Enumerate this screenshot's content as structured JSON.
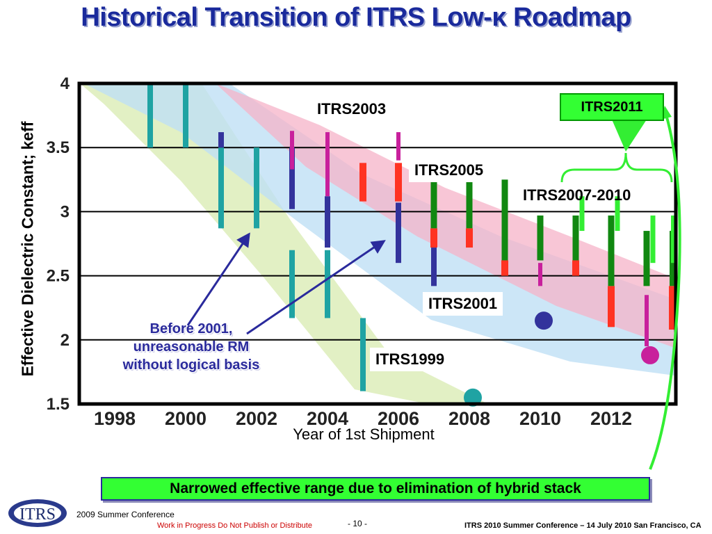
{
  "slide": {
    "title": "Historical Transition of ITRS Low-κ Roadmap",
    "footer_note": "Narrowed effective range due to elimination of hybrid stack",
    "annotation": [
      "Before 2001,",
      "unreasonable RM",
      "without logical basis"
    ],
    "logo_text": "ITRS",
    "conference": "2009 Summer Conference",
    "work_in_progress": "Work in Progress   Do Not Publish or Distribute",
    "page_number": "- 10 -",
    "conference_info": "ITRS 2010 Summer Conference – 14 July 2010 San Francisco, CA"
  },
  "chart_data": {
    "type": "bar",
    "xlabel": "Year of 1st Shipment",
    "ylabel": "Effective Dielectric Constant; keff",
    "xlim": [
      1997,
      2014
    ],
    "ylim": [
      1.5,
      4
    ],
    "x_ticks": [
      "1998",
      "2000",
      "2002",
      "2004",
      "2006",
      "2008",
      "2010",
      "2012"
    ],
    "y_ticks": [
      "1.5",
      "2",
      "2.5",
      "3",
      "3.5",
      "4"
    ],
    "grid": "horizontal",
    "series": [
      {
        "name": "ITRS1999",
        "color": "#1fa3a3",
        "label_color": "#1fbfe8",
        "ranges": [
          {
            "x": 1999,
            "low": 3.5,
            "high": 4.0
          },
          {
            "x": 2000,
            "low": 3.5,
            "high": 4.0
          },
          {
            "x": 2001,
            "low": 2.87,
            "high": 3.5
          },
          {
            "x": 2002,
            "low": 2.87,
            "high": 3.5
          },
          {
            "x": 2003,
            "low": 2.17,
            "high": 2.7
          },
          {
            "x": 2004,
            "low": 2.17,
            "high": 2.7
          },
          {
            "x": 2005,
            "low": 1.6,
            "high": 2.17
          }
        ],
        "target_point": {
          "x": 2008,
          "y": 1.55
        }
      },
      {
        "name": "ITRS2001",
        "color": "#33339c",
        "label_color": "#1a2a9c",
        "ranges": [
          {
            "x": 2001,
            "low": 3.5,
            "high": 3.62
          },
          {
            "x": 2003,
            "low": 3.02,
            "high": 3.5
          },
          {
            "x": 2004,
            "low": 2.72,
            "high": 3.12
          },
          {
            "x": 2006,
            "low": 2.6,
            "high": 3.07
          },
          {
            "x": 2007,
            "low": 2.42,
            "high": 2.72
          }
        ],
        "target_point": {
          "x": 2010,
          "y": 2.15
        }
      },
      {
        "name": "ITRS2003",
        "color": "#c8209c",
        "label_color": "#ff00cc",
        "ranges": [
          {
            "x": 2003,
            "low": 3.33,
            "high": 3.63
          },
          {
            "x": 2004,
            "low": 3.12,
            "high": 3.62
          },
          {
            "x": 2006,
            "low": 3.4,
            "high": 3.62
          },
          {
            "x": 2010,
            "low": 2.42,
            "high": 2.6
          },
          {
            "x": 2013,
            "low": 1.95,
            "high": 2.35
          }
        ],
        "target_point": {
          "x": 2013,
          "y": 1.88
        }
      },
      {
        "name": "ITRS2005",
        "color": "#ff3322",
        "label_color": "#ff3322",
        "ranges": [
          {
            "x": 2005,
            "low": 3.08,
            "high": 3.38
          },
          {
            "x": 2006,
            "low": 3.08,
            "high": 3.38
          },
          {
            "x": 2007,
            "low": 2.72,
            "high": 2.87
          },
          {
            "x": 2008,
            "low": 2.72,
            "high": 2.87
          },
          {
            "x": 2009,
            "low": 2.5,
            "high": 2.62
          },
          {
            "x": 2011,
            "low": 2.5,
            "high": 2.62
          },
          {
            "x": 2012,
            "low": 2.1,
            "high": 2.42
          },
          {
            "x": 2014,
            "low": 2.08,
            "high": 2.42
          }
        ]
      },
      {
        "name": "ITRS2007-2010",
        "color": "#118811",
        "label_color": "#118811",
        "ranges": [
          {
            "x": 2007,
            "low": 2.87,
            "high": 3.25
          },
          {
            "x": 2008,
            "low": 2.87,
            "high": 3.25
          },
          {
            "x": 2009,
            "low": 2.62,
            "high": 3.25
          },
          {
            "x": 2010,
            "low": 2.62,
            "high": 2.97
          },
          {
            "x": 2011,
            "low": 2.62,
            "high": 2.97
          },
          {
            "x": 2012,
            "low": 2.42,
            "high": 2.97
          },
          {
            "x": 2013,
            "low": 2.42,
            "high": 2.85
          },
          {
            "x": 2014,
            "low": 2.42,
            "high": 2.85
          }
        ]
      },
      {
        "name": "ITRS2011",
        "color": "#33ee33",
        "label_color": "#000000",
        "ranges": [
          {
            "x": 2011,
            "low": 2.85,
            "high": 3.12
          },
          {
            "x": 2012,
            "low": 2.85,
            "high": 3.12
          },
          {
            "x": 2013,
            "low": 2.6,
            "high": 2.97
          },
          {
            "x": 2014,
            "low": 2.6,
            "high": 2.97
          }
        ]
      }
    ]
  }
}
